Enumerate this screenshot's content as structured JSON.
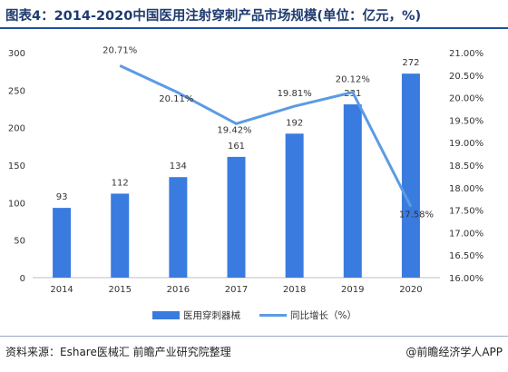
{
  "header": {
    "title": "图表4：2014-2020中国医用注射穿刺产品市场规模(单位：亿元，%)"
  },
  "footer": {
    "source": "资料来源：Eshare医械汇 前瞻产业研究院整理",
    "brand": "@前瞻经济学人APP"
  },
  "colors": {
    "bar": "#3a7be0",
    "line": "#5b9be3"
  },
  "chart_data": {
    "type": "bar",
    "categories": [
      "2014",
      "2015",
      "2016",
      "2017",
      "2018",
      "2019",
      "2020"
    ],
    "series": [
      {
        "name": "医用穿刺器械",
        "type": "bar",
        "axis": "left",
        "values": [
          93,
          112,
          134,
          161,
          192,
          231,
          272
        ],
        "labels": [
          "93",
          "112",
          "134",
          "161",
          "192",
          "231",
          "272"
        ]
      },
      {
        "name": "同比增长（%）",
        "type": "line",
        "axis": "right",
        "x": [
          "2015",
          "2016",
          "2017",
          "2018",
          "2019",
          "2020"
        ],
        "values": [
          20.71,
          20.11,
          19.42,
          19.81,
          20.12,
          17.58
        ],
        "labels": [
          "20.71%",
          "20.11%",
          "19.42%",
          "19.81%",
          "20.12%",
          "17.58%"
        ]
      }
    ],
    "y_left": {
      "lim": [
        0,
        300
      ],
      "ticks": [
        "0",
        "50",
        "100",
        "150",
        "200",
        "250",
        "300"
      ]
    },
    "y_right": {
      "lim": [
        16.0,
        21.0
      ],
      "ticks": [
        "16.00%",
        "16.50%",
        "17.00%",
        "17.50%",
        "18.00%",
        "18.50%",
        "19.00%",
        "19.50%",
        "20.00%",
        "20.50%",
        "21.00%"
      ]
    },
    "grid": false,
    "legend": "bottom"
  }
}
